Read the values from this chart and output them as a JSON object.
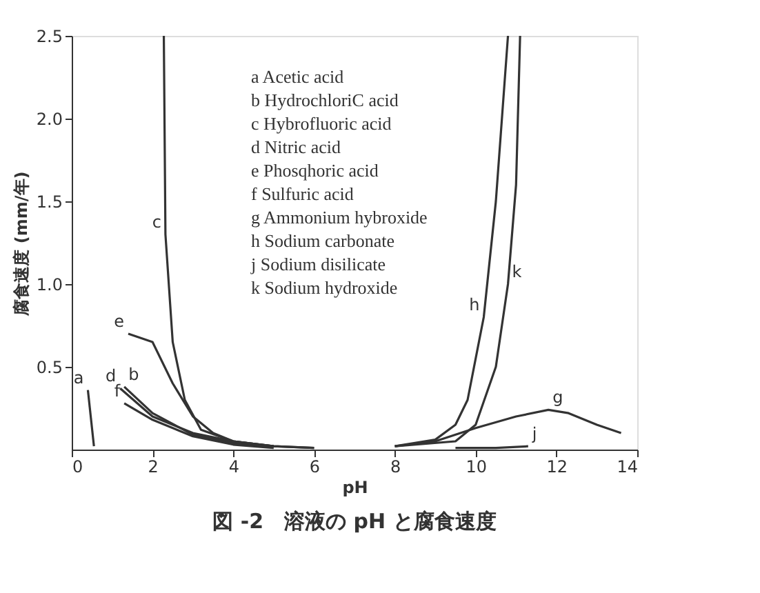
{
  "chart_data": {
    "type": "line",
    "title": "図 -2　溶液の pH と腐食速度",
    "xlabel": "pH",
    "ylabel": "腐食速度 (mm/年)",
    "xlim": [
      0,
      14
    ],
    "xticks": [
      0,
      2,
      4,
      6,
      8,
      10,
      12,
      14
    ],
    "ylim": [
      0,
      2.5
    ],
    "yticks": [
      {
        "value": 0.5,
        "label": "0.5"
      },
      {
        "value": 1,
        "label": "1.0"
      },
      {
        "value": 1.5,
        "label": "1.5"
      },
      {
        "value": 2,
        "label": "2.0"
      },
      {
        "value": 2.5,
        "label": "2.5"
      }
    ],
    "grid": false,
    "marker": "none",
    "line_style": "solid",
    "annotations": [
      "a  Acetic acid",
      "b  HydrochloriC acid",
      "c  Hybrofluoric acid",
      "d  Nitric acid",
      "e  Phosqhoric acid",
      "f  Sulfuric acid",
      "g  Ammonium hybroxide",
      "h  Sodium carbonate",
      "j  Sodium disilicate",
      "k  Sodium hydroxide"
    ],
    "series": [
      {
        "name": "a",
        "color": "#333333",
        "x": [
          0.4,
          0.55
        ],
        "values": [
          0.36,
          0.02
        ]
      },
      {
        "name": "b",
        "color": "#333333",
        "x": [
          1.3,
          2,
          3,
          4,
          5,
          6
        ],
        "values": [
          0.38,
          0.22,
          0.09,
          0.04,
          0.02,
          0.01
        ]
      },
      {
        "name": "c",
        "color": "#333333",
        "x": [
          2.28,
          2.32,
          2.5,
          2.8,
          3.2,
          4,
          5,
          6
        ],
        "values": [
          2.5,
          1.3,
          0.65,
          0.3,
          0.12,
          0.05,
          0.02,
          0.01
        ]
      },
      {
        "name": "d",
        "color": "#333333",
        "x": [
          1.2,
          2,
          3,
          4,
          5
        ],
        "values": [
          0.37,
          0.2,
          0.1,
          0.05,
          0.02
        ]
      },
      {
        "name": "e",
        "color": "#333333",
        "x": [
          1.4,
          2,
          2.5,
          3,
          3.5,
          4,
          5
        ],
        "values": [
          0.7,
          0.65,
          0.4,
          0.2,
          0.1,
          0.05,
          0.02
        ]
      },
      {
        "name": "f",
        "color": "#333333",
        "x": [
          1.3,
          2,
          3,
          4,
          5
        ],
        "values": [
          0.28,
          0.18,
          0.08,
          0.03,
          0.01
        ]
      },
      {
        "name": "g",
        "color": "#333333",
        "x": [
          8,
          9,
          10,
          11,
          11.8,
          12.3,
          13,
          13.6
        ],
        "values": [
          0.02,
          0.05,
          0.13,
          0.2,
          0.24,
          0.22,
          0.15,
          0.1
        ]
      },
      {
        "name": "h",
        "color": "#333333",
        "x": [
          8,
          9,
          9.5,
          9.8,
          10.2,
          10.5,
          10.8
        ],
        "values": [
          0.02,
          0.06,
          0.15,
          0.3,
          0.8,
          1.5,
          2.5
        ]
      },
      {
        "name": "j",
        "color": "#333333",
        "x": [
          9.5,
          10.5,
          11.3
        ],
        "values": [
          0.01,
          0.01,
          0.02
        ]
      },
      {
        "name": "k",
        "color": "#333333",
        "x": [
          8,
          9.5,
          10,
          10.5,
          10.8,
          11,
          11.1
        ],
        "values": [
          0.02,
          0.05,
          0.15,
          0.5,
          1.0,
          1.6,
          2.5
        ]
      }
    ]
  }
}
